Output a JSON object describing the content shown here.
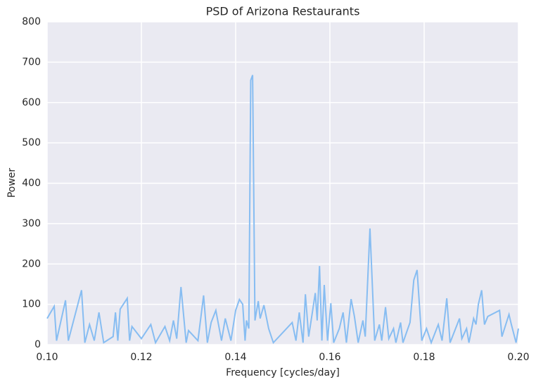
{
  "chart_data": {
    "type": "line",
    "title": "PSD of Arizona Restaurants",
    "x_label": "Frequency [cycles/day]",
    "y_label": "Power",
    "xlim": [
      0.1,
      0.2
    ],
    "xticks": [
      {
        "value": 0.1,
        "label": "0.10"
      },
      {
        "value": 0.12,
        "label": "0.12"
      },
      {
        "value": 0.14,
        "label": "0.14"
      },
      {
        "value": 0.16,
        "label": "0.16"
      },
      {
        "value": 0.18,
        "label": "0.18"
      },
      {
        "value": 0.2,
        "label": "0.20"
      }
    ],
    "ylim": [
      0,
      800
    ],
    "yticks": [
      0,
      100,
      200,
      300,
      400,
      500,
      600,
      700,
      800
    ],
    "grid": true,
    "series": [
      {
        "name": "PSD",
        "color": "#87bdf2",
        "x": [
          0.1,
          0.1015,
          0.102,
          0.1039,
          0.1045,
          0.1073,
          0.108,
          0.109,
          0.11,
          0.111,
          0.112,
          0.114,
          0.1145,
          0.115,
          0.1155,
          0.117,
          0.1175,
          0.118,
          0.12,
          0.122,
          0.123,
          0.125,
          0.126,
          0.1268,
          0.1275,
          0.1284,
          0.1295,
          0.13,
          0.132,
          0.1332,
          0.134,
          0.1348,
          0.1358,
          0.137,
          0.1378,
          0.139,
          0.14,
          0.1408,
          0.1415,
          0.142,
          0.1423,
          0.1428,
          0.1432,
          0.1436,
          0.1441,
          0.1448,
          0.1452,
          0.146,
          0.147,
          0.148,
          0.15,
          0.152,
          0.1528,
          0.1535,
          0.1543,
          0.1548,
          0.1555,
          0.1569,
          0.1573,
          0.1578,
          0.1583,
          0.1588,
          0.1595,
          0.1602,
          0.1608,
          0.162,
          0.1628,
          0.1635,
          0.1645,
          0.1652,
          0.166,
          0.167,
          0.1675,
          0.1685,
          0.1695,
          0.1705,
          0.171,
          0.1718,
          0.1725,
          0.1735,
          0.174,
          0.175,
          0.1755,
          0.177,
          0.1778,
          0.1785,
          0.1795,
          0.1805,
          0.1815,
          0.183,
          0.1838,
          0.1848,
          0.1855,
          0.1875,
          0.188,
          0.189,
          0.1895,
          0.1905,
          0.191,
          0.1915,
          0.1922,
          0.1928,
          0.1935,
          0.196,
          0.1965,
          0.198,
          0.1985,
          0.1995,
          0.2
        ],
        "values": [
          65,
          95,
          10,
          110,
          10,
          135,
          5,
          50,
          10,
          80,
          5,
          20,
          80,
          10,
          88,
          115,
          10,
          45,
          15,
          50,
          5,
          45,
          10,
          60,
          15,
          143,
          5,
          35,
          10,
          122,
          5,
          55,
          85,
          10,
          65,
          10,
          85,
          112,
          100,
          10,
          60,
          40,
          655,
          668,
          60,
          108,
          65,
          98,
          40,
          5,
          30,
          55,
          10,
          80,
          5,
          125,
          20,
          128,
          60,
          195,
          10,
          148,
          10,
          103,
          5,
          40,
          80,
          5,
          113,
          70,
          5,
          60,
          20,
          288,
          10,
          50,
          10,
          93,
          15,
          40,
          5,
          55,
          5,
          55,
          160,
          185,
          10,
          40,
          5,
          50,
          10,
          115,
          5,
          65,
          15,
          40,
          5,
          65,
          50,
          100,
          135,
          50,
          70,
          85,
          20,
          75,
          50,
          5,
          40
        ]
      }
    ]
  }
}
